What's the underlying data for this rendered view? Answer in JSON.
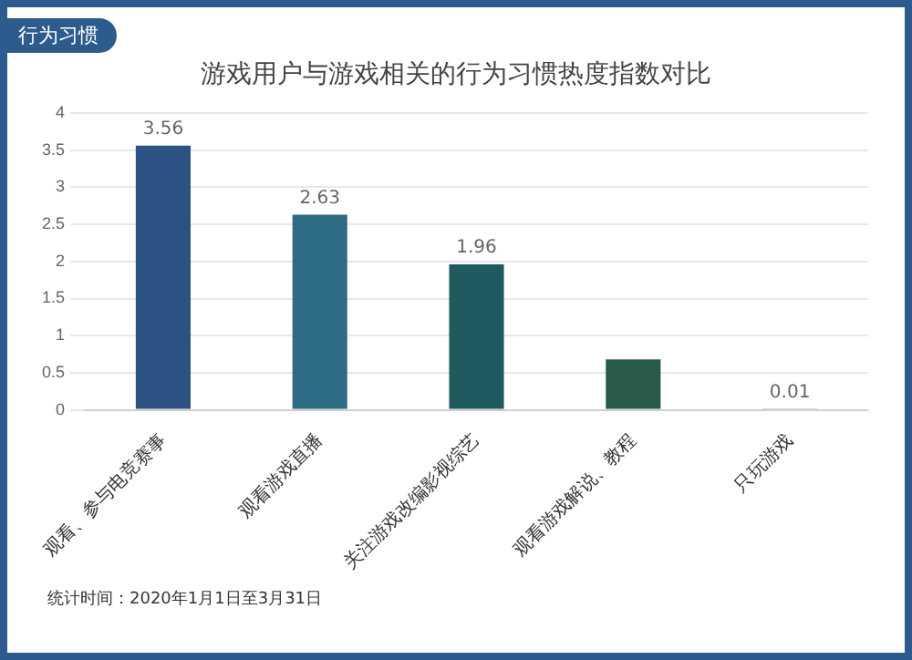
{
  "chart_data": {
    "type": "bar",
    "title": "游戏用户与游戏相关的行为习惯热度指数对比",
    "categories": [
      "观看、参与电竞赛事",
      "观看游戏直播",
      "关注游戏改编影视综艺",
      "观看游戏解说、教程",
      "只玩游戏"
    ],
    "values": [
      3.56,
      2.63,
      1.96,
      0.68,
      0.01
    ],
    "colors": [
      "#2b5283",
      "#2e6b84",
      "#1f5a5e",
      "#285c48",
      "#3a6a50"
    ],
    "value_labels": [
      "3.56",
      "2.63",
      "1.96",
      null,
      "0.01"
    ],
    "ylim": [
      0,
      4
    ],
    "yticks": [
      0,
      0.5,
      1,
      1.5,
      2,
      2.5,
      3,
      3.5,
      4
    ],
    "grid": "y",
    "legend": false,
    "annotations": [
      "行为习惯",
      "统计时间：2020年1月1日至3月31日"
    ]
  }
}
